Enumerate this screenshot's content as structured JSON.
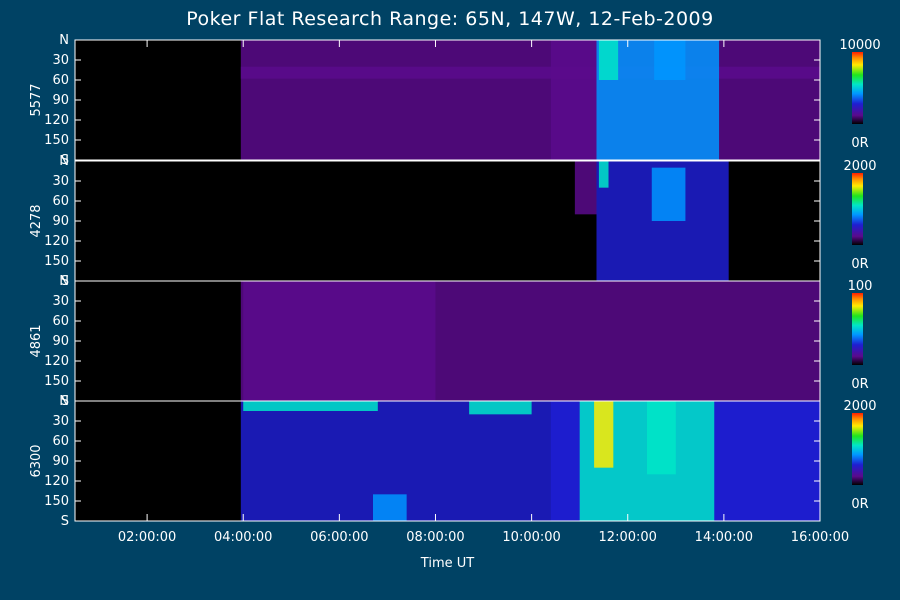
{
  "chart_data": {
    "type": "heatmap",
    "title": "Poker Flat Research Range: 65N, 147W, 12-Feb-2009",
    "xlabel": "Time UT",
    "x_ticks": [
      "02:00:00",
      "04:00:00",
      "06:00:00",
      "08:00:00",
      "10:00:00",
      "12:00:00",
      "14:00:00",
      "16:00:00"
    ],
    "x_range_hours": [
      0.5,
      16.0
    ],
    "y_ticks": [
      "N",
      "30",
      "60",
      "90",
      "120",
      "150",
      "S"
    ],
    "panels": [
      {
        "name": "5577",
        "colorbar_max": "10000",
        "colorbar_min": "0R",
        "features": [
          {
            "t0": 3.95,
            "t1": 16.0,
            "e0": 0,
            "e1": 180,
            "level": 0.1
          },
          {
            "t0": 3.95,
            "t1": 16.0,
            "e0": 40,
            "e1": 58,
            "level": 0.18
          },
          {
            "t0": 10.4,
            "t1": 11.4,
            "e0": 0,
            "e1": 180,
            "level": 0.18
          },
          {
            "t0": 11.35,
            "t1": 13.9,
            "e0": 0,
            "e1": 180,
            "level": 0.32
          },
          {
            "t0": 11.4,
            "t1": 11.8,
            "e0": 0,
            "e1": 60,
            "level": 0.55
          },
          {
            "t0": 12.55,
            "t1": 13.2,
            "e0": 0,
            "e1": 60,
            "level": 0.4
          }
        ]
      },
      {
        "name": "4278",
        "colorbar_max": "2000",
        "colorbar_min": "0R",
        "features": [
          {
            "t0": 3.95,
            "t1": 16.0,
            "e0": 0,
            "e1": 180,
            "level": 0.05
          },
          {
            "t0": 10.9,
            "t1": 11.35,
            "e0": 0,
            "e1": 80,
            "level": 0.18
          },
          {
            "t0": 11.35,
            "t1": 14.1,
            "e0": 0,
            "e1": 180,
            "level": 0.3
          },
          {
            "t0": 11.4,
            "t1": 11.6,
            "e0": 0,
            "e1": 40,
            "level": 0.55
          },
          {
            "t0": 12.5,
            "t1": 13.2,
            "e0": 10,
            "e1": 90,
            "level": 0.42
          }
        ]
      },
      {
        "name": "4861",
        "colorbar_max": "100",
        "colorbar_min": "0R",
        "features": [
          {
            "t0": 3.95,
            "t1": 16.0,
            "e0": 0,
            "e1": 180,
            "level": 0.07
          },
          {
            "t0": 4.0,
            "t1": 8.0,
            "e0": 0,
            "e1": 180,
            "level": 0.12
          }
        ]
      },
      {
        "name": "6300",
        "colorbar_max": "2000",
        "colorbar_min": "0R",
        "features": [
          {
            "t0": 3.95,
            "t1": 16.0,
            "e0": 0,
            "e1": 180,
            "level": 0.2
          },
          {
            "t0": 4.0,
            "t1": 6.8,
            "e0": 0,
            "e1": 15,
            "level": 0.45
          },
          {
            "t0": 8.7,
            "t1": 10.0,
            "e0": 0,
            "e1": 20,
            "level": 0.45
          },
          {
            "t0": 10.4,
            "t1": 16.0,
            "e0": 0,
            "e1": 180,
            "level": 0.3
          },
          {
            "t0": 11.0,
            "t1": 13.8,
            "e0": 0,
            "e1": 180,
            "level": 0.45
          },
          {
            "t0": 11.3,
            "t1": 11.7,
            "e0": 0,
            "e1": 100,
            "level": 0.7
          },
          {
            "t0": 12.4,
            "t1": 13.0,
            "e0": 0,
            "e1": 110,
            "level": 0.55
          },
          {
            "t0": 6.7,
            "t1": 7.4,
            "e0": 140,
            "e1": 180,
            "level": 0.32
          }
        ]
      }
    ]
  }
}
